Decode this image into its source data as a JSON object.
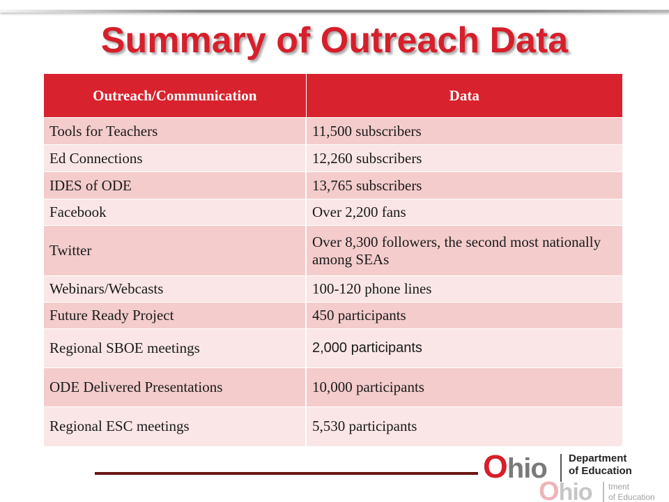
{
  "slide": {
    "title": "Summary of Outreach Data"
  },
  "table": {
    "headers": [
      "Outreach/Communication",
      "Data"
    ],
    "rows": [
      [
        "Tools for Teachers",
        "11,500 subscribers"
      ],
      [
        "Ed Connections",
        "12,260 subscribers"
      ],
      [
        "IDES of ODE",
        "13,765 subscribers"
      ],
      [
        "Facebook",
        "Over 2,200 fans"
      ],
      [
        "Twitter",
        "Over 8,300 followers, the second most nationally among SEAs"
      ],
      [
        "Webinars/Webcasts",
        "100-120 phone lines"
      ],
      [
        "Future Ready Project",
        "450 participants"
      ],
      [
        "Regional SBOE meetings",
        "2,000 participants"
      ],
      [
        "ODE Delivered Presentations",
        "10,000 participants"
      ],
      [
        "Regional ESC meetings",
        "5,530 participants"
      ]
    ]
  },
  "logo": {
    "ohio_first": "O",
    "ohio_rest": "hio",
    "dept_line1": "Department",
    "dept_line2": "of Education",
    "ghost_line1": "tment",
    "ghost_line2": "of Education"
  },
  "colors": {
    "accent_red": "#d61f2b",
    "header_red": "#d8222d",
    "row_dark": "#f4cccc",
    "row_light": "#fae6e6",
    "rule_dark": "#6b1414"
  }
}
